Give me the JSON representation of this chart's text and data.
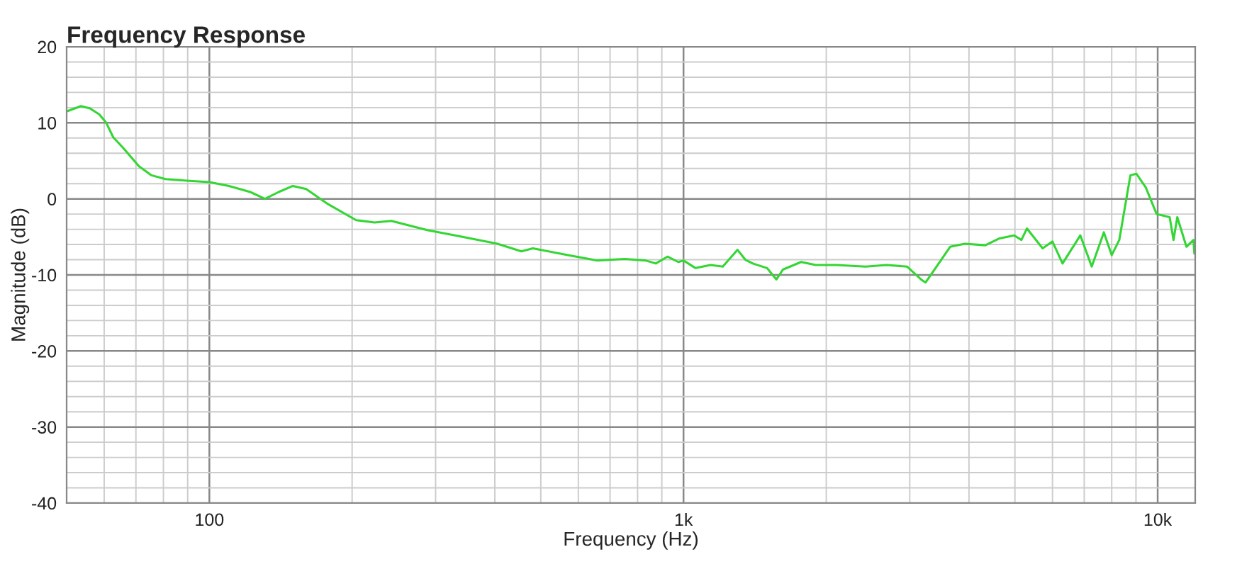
{
  "chart_data": {
    "type": "line",
    "title": "Frequency Response",
    "xlabel": "Frequency (Hz)",
    "ylabel": "Magnitude (dB)",
    "log": "x",
    "grid": true,
    "xlim": [
      50,
      12000
    ],
    "ylim": [
      -40,
      20
    ],
    "xticks": [
      {
        "value": 100,
        "label": "100"
      },
      {
        "value": 1000,
        "label": "1k"
      },
      {
        "value": 10000,
        "label": "10k"
      }
    ],
    "yticks": [
      -40,
      -30,
      -20,
      -10,
      0,
      10,
      20
    ],
    "series": [
      {
        "color": "#33d633",
        "x": [
          50,
          53.6,
          56,
          58.6,
          60.6,
          62.7,
          65.8,
          71,
          75.5,
          80.8,
          89.6,
          100,
          110,
          122,
          131,
          140,
          150,
          160,
          178,
          204,
          223,
          242,
          288,
          330,
          405,
          455,
          481,
          570,
          656,
          752,
          832,
          874,
          925,
          975,
          1000,
          1060,
          1140,
          1210,
          1300,
          1350,
          1400,
          1500,
          1570,
          1620,
          1770,
          1900,
          2100,
          2420,
          2680,
          2960,
          3170,
          3240,
          3400,
          3650,
          3920,
          4330,
          4640,
          4980,
          5160,
          5300,
          5720,
          6000,
          6300,
          6870,
          7260,
          7700,
          8000,
          8300,
          8760,
          9020,
          9440,
          9950,
          10600,
          10800,
          11000,
          11500,
          11900,
          11950
        ],
        "values": [
          11.5,
          12.2,
          11.9,
          11.1,
          10,
          8.1,
          6.7,
          4.3,
          3.1,
          2.6,
          2.4,
          2.2,
          1.7,
          0.9,
          0,
          0.9,
          1.7,
          1.3,
          -0.7,
          -2.8,
          -3.1,
          -2.9,
          -4.1,
          -4.8,
          -5.9,
          -6.9,
          -6.5,
          -7.4,
          -8.1,
          -7.9,
          -8.1,
          -8.5,
          -7.6,
          -8.3,
          -8.1,
          -9.1,
          -8.7,
          -8.9,
          -6.7,
          -8,
          -8.5,
          -9.1,
          -10.6,
          -9.3,
          -8.3,
          -8.7,
          -8.7,
          -8.9,
          -8.7,
          -8.9,
          -10.6,
          -11,
          -9.1,
          -6.3,
          -5.9,
          -6.1,
          -5.2,
          -4.8,
          -5.4,
          -3.9,
          -6.5,
          -5.6,
          -8.5,
          -4.8,
          -8.9,
          -4.4,
          -7.4,
          -5.4,
          3.1,
          3.3,
          1.5,
          -2,
          -2.4,
          -5.4,
          -2.4,
          -6.3,
          -5.4,
          -7.2
        ]
      }
    ]
  }
}
